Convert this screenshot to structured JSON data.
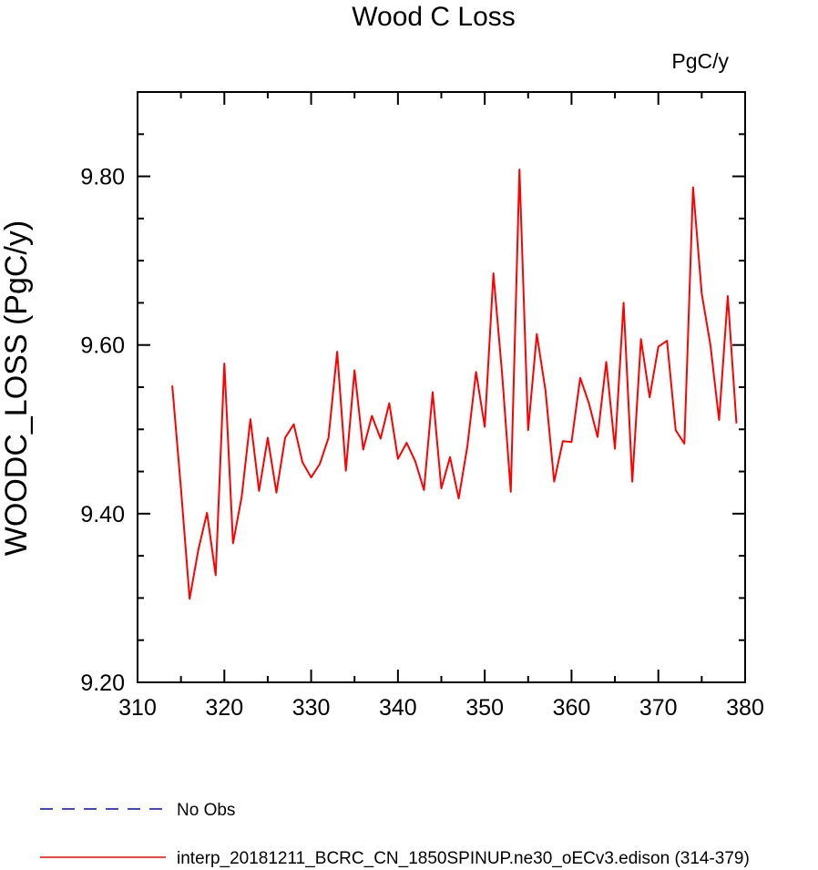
{
  "chart_data": {
    "type": "line",
    "title": "Wood C Loss",
    "units": "PgC/y",
    "xlabel": "",
    "ylabel": "WOODC_LOSS  (PgC/y)",
    "xlim": [
      310,
      380
    ],
    "ylim": [
      9.2,
      9.9
    ],
    "x_ticks": [
      "310",
      "320",
      "330",
      "340",
      "350",
      "360",
      "370",
      "380"
    ],
    "y_ticks": [
      "9.20",
      "9.40",
      "9.60",
      "9.80"
    ],
    "series": [
      {
        "name": "interp_20181211_BCRC_CN_1850SPINUP.ne30_oECv3.edison (314-379)",
        "color": "#ff0000",
        "style": "solid",
        "x": [
          314,
          315,
          316,
          317,
          318,
          319,
          320,
          321,
          322,
          323,
          324,
          325,
          326,
          327,
          328,
          329,
          330,
          331,
          332,
          333,
          334,
          335,
          336,
          337,
          338,
          339,
          340,
          341,
          342,
          343,
          344,
          345,
          346,
          347,
          348,
          349,
          350,
          351,
          352,
          353,
          354,
          355,
          356,
          357,
          358,
          359,
          360,
          361,
          362,
          363,
          364,
          365,
          366,
          367,
          368,
          369,
          370,
          371,
          372,
          373,
          374,
          375,
          376,
          377,
          378,
          379
        ],
        "values": [
          9.552,
          9.43,
          9.299,
          9.357,
          9.401,
          9.327,
          9.578,
          9.365,
          9.42,
          9.512,
          9.427,
          9.49,
          9.425,
          9.49,
          9.506,
          9.461,
          9.443,
          9.459,
          9.49,
          9.592,
          9.451,
          9.57,
          9.476,
          9.516,
          9.489,
          9.531,
          9.465,
          9.484,
          9.462,
          9.428,
          9.544,
          9.43,
          9.467,
          9.418,
          9.48,
          9.568,
          9.503,
          9.685,
          9.566,
          9.426,
          9.808,
          9.499,
          9.613,
          9.546,
          9.438,
          9.486,
          9.485,
          9.561,
          9.531,
          9.491,
          9.58,
          9.477,
          9.65,
          9.438,
          9.607,
          9.538,
          9.598,
          9.605,
          9.499,
          9.483,
          9.787,
          9.661,
          9.6,
          9.511,
          9.658,
          9.507
        ]
      },
      {
        "name": "No Obs",
        "color": "#0000ff",
        "style": "dashed",
        "x": [],
        "values": []
      }
    ]
  }
}
